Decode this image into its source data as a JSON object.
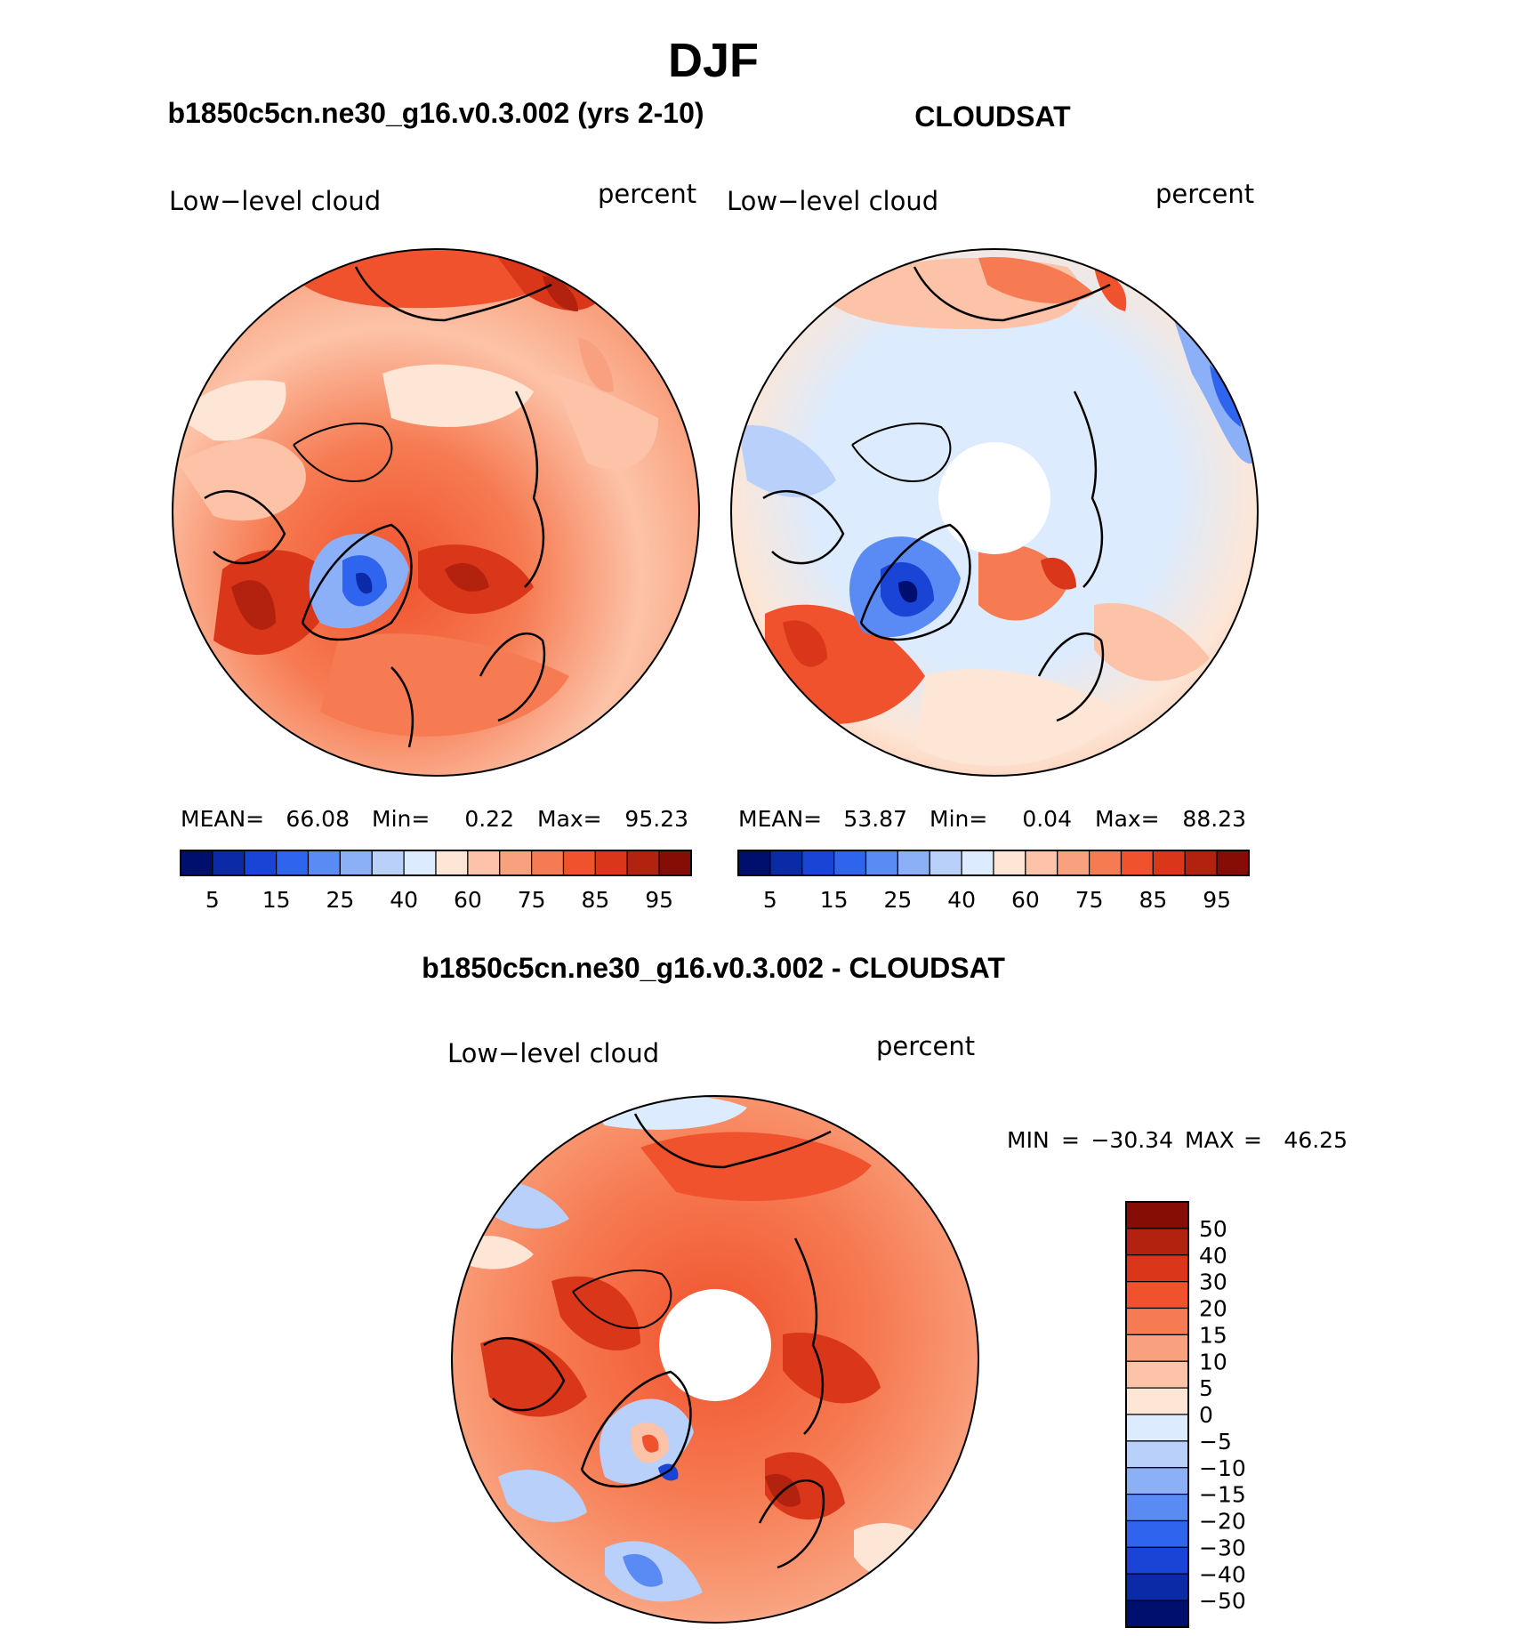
{
  "figure_title": "DJF",
  "chart_data": [
    {
      "type": "heatmap",
      "projection": "north-polar-stereographic",
      "panel_title": "b1850c5cn.ne30_g16.v0.3.002 (yrs 2-10)",
      "left_label": "Low−level cloud",
      "right_label": "percent",
      "stats": {
        "mean_label": "MEAN=",
        "mean": "66.08",
        "min_label": "Min=",
        "min": "0.22",
        "max_label": "Max=",
        "max": "95.23"
      },
      "colorbar": {
        "orientation": "horizontal",
        "colors": [
          "#000f6e",
          "#0a2aa8",
          "#1a44d6",
          "#2f64ee",
          "#5a8af4",
          "#8cb0f8",
          "#b9d0fb",
          "#dcebfd",
          "#fde6d6",
          "#fcc3a8",
          "#f9a17e",
          "#f67b52",
          "#f0522e",
          "#d9361a",
          "#b2220e",
          "#860d05"
        ],
        "tick_labels": [
          "5",
          "15",
          "25",
          "40",
          "60",
          "75",
          "85",
          "95"
        ]
      }
    },
    {
      "type": "heatmap",
      "projection": "north-polar-stereographic",
      "panel_title": "CLOUDSAT",
      "left_label": "Low−level cloud",
      "right_label": "percent",
      "stats": {
        "mean_label": "MEAN=",
        "mean": "53.87",
        "min_label": "Min=",
        "min": "0.04",
        "max_label": "Max=",
        "max": "88.23"
      },
      "colorbar": {
        "orientation": "horizontal",
        "colors": [
          "#000f6e",
          "#0a2aa8",
          "#1a44d6",
          "#2f64ee",
          "#5a8af4",
          "#8cb0f8",
          "#b9d0fb",
          "#dcebfd",
          "#fde6d6",
          "#fcc3a8",
          "#f9a17e",
          "#f67b52",
          "#f0522e",
          "#d9361a",
          "#b2220e",
          "#860d05"
        ],
        "tick_labels": [
          "5",
          "15",
          "25",
          "40",
          "60",
          "75",
          "85",
          "95"
        ]
      }
    },
    {
      "type": "heatmap",
      "projection": "north-polar-stereographic",
      "panel_title": "b1850c5cn.ne30_g16.v0.3.002 - CLOUDSAT",
      "left_label": "Low−level cloud",
      "right_label": "percent",
      "stats": {
        "min_label": "MIN",
        "eq1": "=",
        "min": "−30.34",
        "max_label": "MAX",
        "eq2": "=",
        "max": "46.25"
      },
      "colorbar": {
        "orientation": "vertical",
        "colors": [
          "#860d05",
          "#b2220e",
          "#d9361a",
          "#f0522e",
          "#f67b52",
          "#f9a17e",
          "#fcc3a8",
          "#fde6d6",
          "#dcebfd",
          "#b9d0fb",
          "#8cb0f8",
          "#5a8af4",
          "#2f64ee",
          "#1a44d6",
          "#0a2aa8",
          "#000f6e"
        ],
        "tick_labels": [
          "50",
          "40",
          "30",
          "20",
          "15",
          "10",
          "5",
          "0",
          "−5",
          "−10",
          "−15",
          "−20",
          "−30",
          "−40",
          "−50"
        ]
      }
    }
  ]
}
